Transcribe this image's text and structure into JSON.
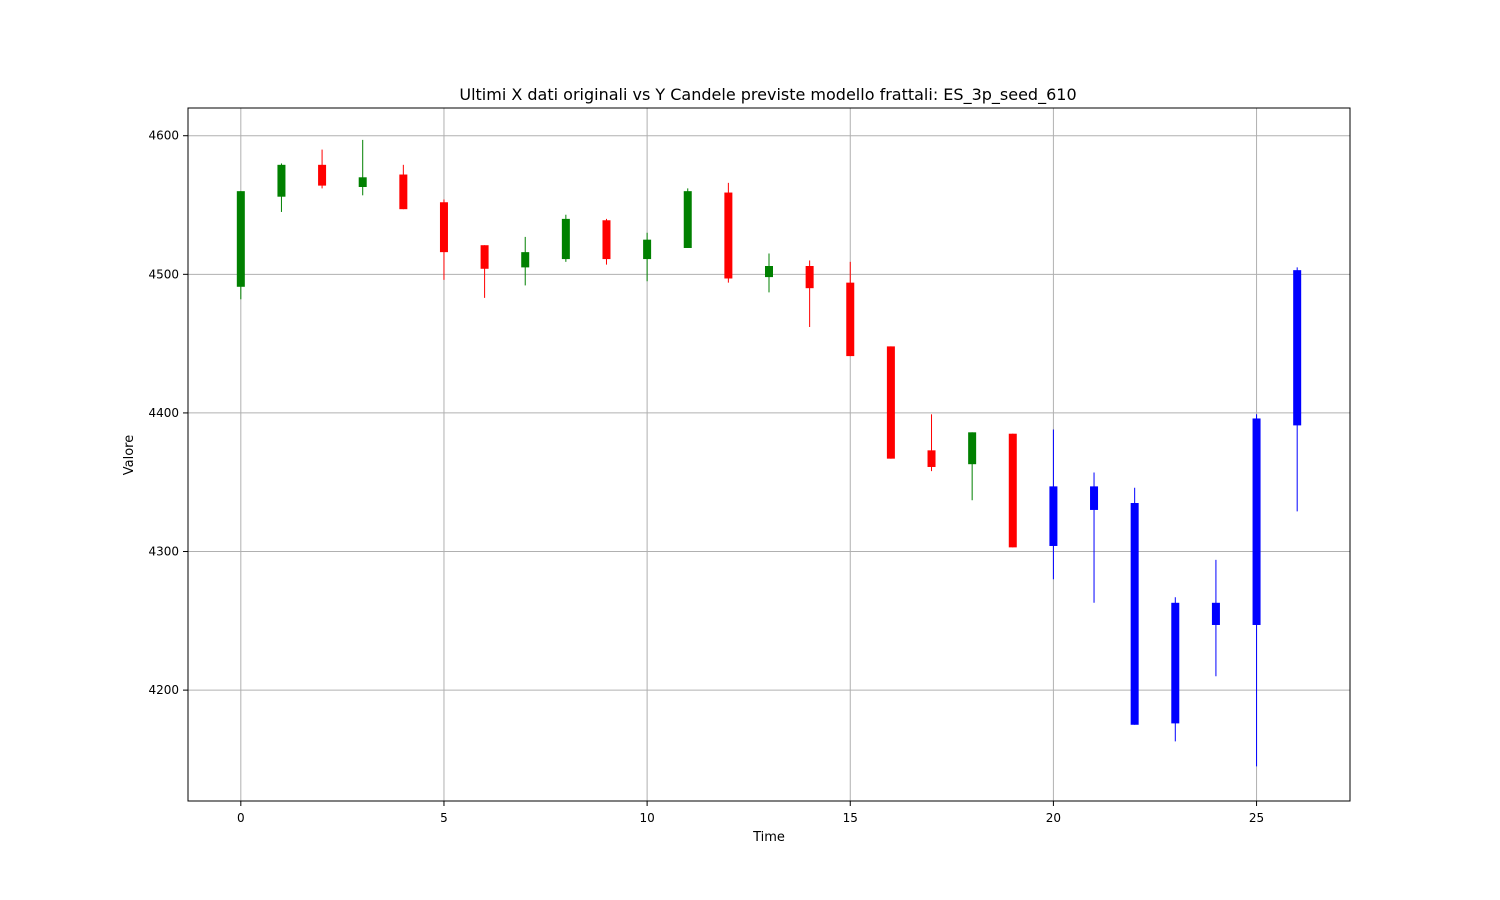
{
  "chart_data": {
    "type": "candlestick",
    "title": "Ultimi X dati originali vs Y Candele previste modello frattali: ES_3p_seed_610",
    "xlabel": "Time",
    "ylabel": "Valore",
    "xlim": [
      -1.3,
      27.3
    ],
    "ylim": [
      4120,
      4620
    ],
    "xticks": [
      0,
      5,
      10,
      15,
      20,
      25
    ],
    "yticks": [
      4200,
      4300,
      4400,
      4500,
      4600
    ],
    "grid": true,
    "colors": {
      "up": "#008000",
      "down": "#ff0000",
      "forecast": "#0000ff"
    },
    "candles": [
      {
        "x": 0,
        "open": 4491,
        "high": 4560,
        "low": 4482,
        "close": 4560,
        "kind": "up"
      },
      {
        "x": 1,
        "open": 4556,
        "high": 4580,
        "low": 4545,
        "close": 4579,
        "kind": "up"
      },
      {
        "x": 2,
        "open": 4579,
        "high": 4590,
        "low": 4562,
        "close": 4564,
        "kind": "down"
      },
      {
        "x": 3,
        "open": 4563,
        "high": 4597,
        "low": 4557,
        "close": 4570,
        "kind": "up"
      },
      {
        "x": 4,
        "open": 4572,
        "high": 4579,
        "low": 4547,
        "close": 4547,
        "kind": "down"
      },
      {
        "x": 5,
        "open": 4552,
        "high": 4554,
        "low": 4496,
        "close": 4516,
        "kind": "down"
      },
      {
        "x": 6,
        "open": 4521,
        "high": 4521,
        "low": 4483,
        "close": 4504,
        "kind": "down"
      },
      {
        "x": 7,
        "open": 4505,
        "high": 4527,
        "low": 4492,
        "close": 4516,
        "kind": "up"
      },
      {
        "x": 8,
        "open": 4511,
        "high": 4543,
        "low": 4509,
        "close": 4540,
        "kind": "up"
      },
      {
        "x": 9,
        "open": 4539,
        "high": 4540,
        "low": 4507,
        "close": 4511,
        "kind": "down"
      },
      {
        "x": 10,
        "open": 4511,
        "high": 4530,
        "low": 4495,
        "close": 4525,
        "kind": "up"
      },
      {
        "x": 11,
        "open": 4519,
        "high": 4562,
        "low": 4519,
        "close": 4560,
        "kind": "up"
      },
      {
        "x": 12,
        "open": 4559,
        "high": 4566,
        "low": 4494,
        "close": 4497,
        "kind": "down"
      },
      {
        "x": 13,
        "open": 4498,
        "high": 4515,
        "low": 4487,
        "close": 4506,
        "kind": "up"
      },
      {
        "x": 14,
        "open": 4506,
        "high": 4510,
        "low": 4462,
        "close": 4490,
        "kind": "down"
      },
      {
        "x": 15,
        "open": 4494,
        "high": 4509,
        "low": 4441,
        "close": 4441,
        "kind": "down"
      },
      {
        "x": 16,
        "open": 4448,
        "high": 4448,
        "low": 4367,
        "close": 4367,
        "kind": "down"
      },
      {
        "x": 17,
        "open": 4373,
        "high": 4399,
        "low": 4358,
        "close": 4361,
        "kind": "down"
      },
      {
        "x": 18,
        "open": 4363,
        "high": 4386,
        "low": 4337,
        "close": 4386,
        "kind": "up"
      },
      {
        "x": 19,
        "open": 4385,
        "high": 4385,
        "low": 4303,
        "close": 4303,
        "kind": "down"
      },
      {
        "x": 20,
        "open": 4347,
        "high": 4388,
        "low": 4280,
        "close": 4304,
        "kind": "forecast"
      },
      {
        "x": 21,
        "open": 4347,
        "high": 4357,
        "low": 4263,
        "close": 4330,
        "kind": "forecast"
      },
      {
        "x": 22,
        "open": 4335,
        "high": 4346,
        "low": 4175,
        "close": 4175,
        "kind": "forecast"
      },
      {
        "x": 23,
        "open": 4263,
        "high": 4267,
        "low": 4163,
        "close": 4176,
        "kind": "forecast"
      },
      {
        "x": 24,
        "open": 4263,
        "high": 4294,
        "low": 4210,
        "close": 4247,
        "kind": "forecast"
      },
      {
        "x": 25,
        "open": 4396,
        "high": 4399,
        "low": 4145,
        "close": 4247,
        "kind": "forecast"
      },
      {
        "x": 26,
        "open": 4391,
        "high": 4505,
        "low": 4329,
        "close": 4503,
        "kind": "forecast"
      }
    ]
  }
}
